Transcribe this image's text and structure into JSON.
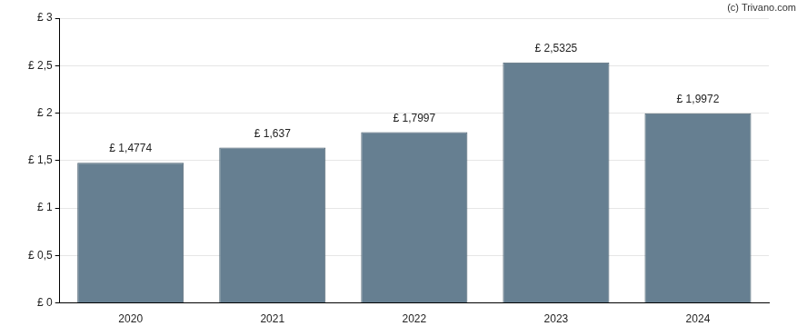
{
  "chart_data": {
    "type": "bar",
    "annotations": [
      "(c) Trivano.com"
    ],
    "categories": [
      "2020",
      "2021",
      "2022",
      "2023",
      "2024"
    ],
    "values": [
      1.4774,
      1.637,
      1.7997,
      2.5325,
      1.9972
    ],
    "value_labels": [
      "£ 1,4774",
      "£ 1,637",
      "£ 1,7997",
      "£ 2,5325",
      "£ 1,9972"
    ],
    "data_labels": true,
    "color": "#667f91",
    "ylim": [
      0,
      3
    ],
    "yticks": [
      {
        "value": 0,
        "label": "£ 0"
      },
      {
        "value": 0.5,
        "label": "£ 0,5"
      },
      {
        "value": 1,
        "label": "£ 1"
      },
      {
        "value": 1.5,
        "label": "£ 1,5"
      },
      {
        "value": 2,
        "label": "£ 2"
      },
      {
        "value": 2.5,
        "label": "£ 2,5"
      },
      {
        "value": 3,
        "label": "£ 3"
      }
    ],
    "grid": true
  }
}
